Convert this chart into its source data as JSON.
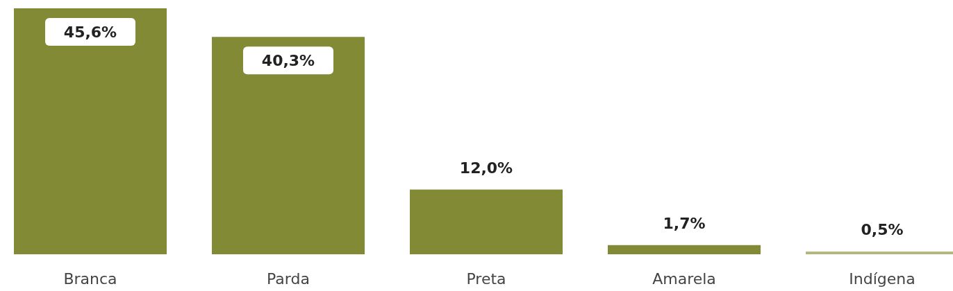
{
  "chart_data": {
    "type": "bar",
    "categories": [
      "Branca",
      "Parda",
      "Preta",
      "Amarela",
      "Indígena"
    ],
    "values": [
      45.6,
      40.3,
      12.0,
      1.7,
      0.5
    ],
    "colors": [
      "#828a35",
      "#828a35",
      "#828a35",
      "#828a35",
      "#b4b77c"
    ],
    "value_labels": [
      "45,6%",
      "40,3%",
      "12,0%",
      "1,7%",
      "0,5%"
    ]
  }
}
